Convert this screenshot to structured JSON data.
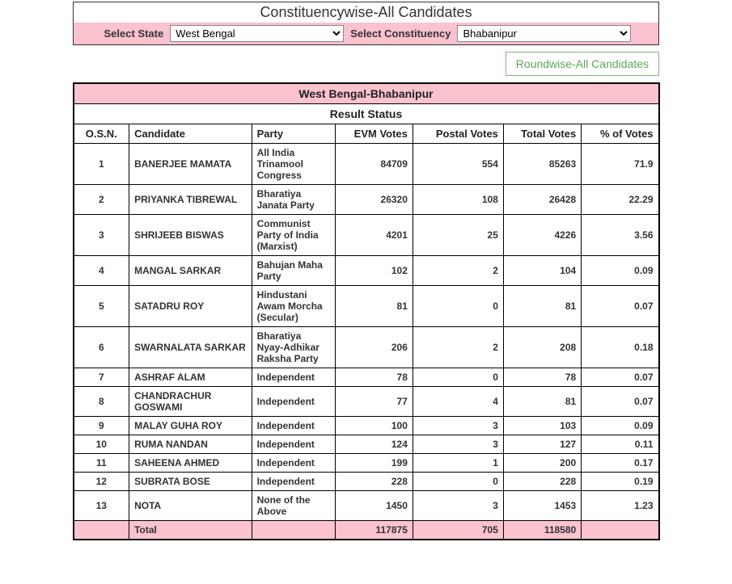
{
  "top": {
    "title": "Constituencywise-All Candidates",
    "select_state_label": "Select State",
    "select_state_value": "West Bengal",
    "select_const_label": "Select Constituency",
    "select_const_value": "Bhabanipur",
    "roundwise_link": "Roundwise-All Candidates"
  },
  "table": {
    "heading1": "West Bengal-Bhabanipur",
    "heading2": "Result Status",
    "columns": {
      "osn": "O.S.N.",
      "candidate": "Candidate",
      "party": "Party",
      "evm": "EVM Votes",
      "postal": "Postal Votes",
      "total": "Total Votes",
      "pct": "% of Votes"
    },
    "rows": [
      {
        "osn": "1",
        "candidate": "BANERJEE MAMATA",
        "party": "All India Trinamool Congress",
        "evm": "84709",
        "postal": "554",
        "total": "85263",
        "pct": "71.9"
      },
      {
        "osn": "2",
        "candidate": "PRIYANKA TIBREWAL",
        "party": "Bharatiya Janata Party",
        "evm": "26320",
        "postal": "108",
        "total": "26428",
        "pct": "22.29"
      },
      {
        "osn": "3",
        "candidate": "SHRIJEEB BISWAS",
        "party": "Communist Party of India (Marxist)",
        "evm": "4201",
        "postal": "25",
        "total": "4226",
        "pct": "3.56"
      },
      {
        "osn": "4",
        "candidate": "MANGAL SARKAR",
        "party": "Bahujan Maha Party",
        "evm": "102",
        "postal": "2",
        "total": "104",
        "pct": "0.09"
      },
      {
        "osn": "5",
        "candidate": "SATADRU ROY",
        "party": "Hindustani Awam Morcha (Secular)",
        "evm": "81",
        "postal": "0",
        "total": "81",
        "pct": "0.07"
      },
      {
        "osn": "6",
        "candidate": "SWARNALATA SARKAR",
        "party": "Bharatiya Nyay-Adhikar Raksha Party",
        "evm": "206",
        "postal": "2",
        "total": "208",
        "pct": "0.18"
      },
      {
        "osn": "7",
        "candidate": "ASHRAF ALAM",
        "party": "Independent",
        "evm": "78",
        "postal": "0",
        "total": "78",
        "pct": "0.07"
      },
      {
        "osn": "8",
        "candidate": "CHANDRACHUR GOSWAMI",
        "party": "Independent",
        "evm": "77",
        "postal": "4",
        "total": "81",
        "pct": "0.07"
      },
      {
        "osn": "9",
        "candidate": "MALAY GUHA ROY",
        "party": "Independent",
        "evm": "100",
        "postal": "3",
        "total": "103",
        "pct": "0.09"
      },
      {
        "osn": "10",
        "candidate": "RUMA NANDAN",
        "party": "Independent",
        "evm": "124",
        "postal": "3",
        "total": "127",
        "pct": "0.11"
      },
      {
        "osn": "11",
        "candidate": "SAHEENA AHMED",
        "party": "Independent",
        "evm": "199",
        "postal": "1",
        "total": "200",
        "pct": "0.17"
      },
      {
        "osn": "12",
        "candidate": "SUBRATA BOSE",
        "party": "Independent",
        "evm": "228",
        "postal": "0",
        "total": "228",
        "pct": "0.19"
      },
      {
        "osn": "13",
        "candidate": "NOTA",
        "party": "None of the Above",
        "evm": "1450",
        "postal": "3",
        "total": "1453",
        "pct": "1.23"
      }
    ],
    "total_row": {
      "label": "Total",
      "evm": "117875",
      "postal": "705",
      "total": "118580",
      "pct": ""
    }
  },
  "style": {
    "pink": "#fbc2cf",
    "border": "#000000",
    "link_green": "#5aa85a"
  }
}
